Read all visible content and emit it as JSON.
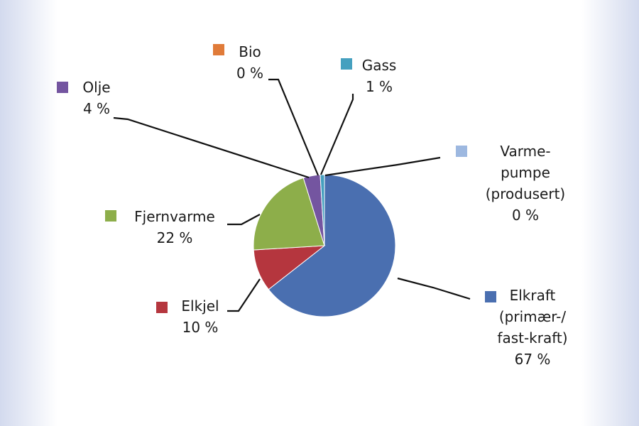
{
  "chart_data": {
    "type": "pie",
    "title": "",
    "slices": [
      {
        "name": "Elkraft (primær-/ fast-kraft)",
        "lines": [
          "Elkraft",
          "(primær-/",
          "fast-kraft)"
        ],
        "value": 67,
        "value_label": "67 %",
        "color": "#4a6fb0"
      },
      {
        "name": "Elkjel",
        "lines": [
          "Elkjel"
        ],
        "value": 10,
        "value_label": "10 %",
        "color": "#b5363e"
      },
      {
        "name": "Fjernvarme",
        "lines": [
          "Fjernvarme"
        ],
        "value": 22,
        "value_label": "22 %",
        "color": "#8dae4a"
      },
      {
        "name": "Olje",
        "lines": [
          "Olje"
        ],
        "value": 4,
        "value_label": "4 %",
        "color": "#7455a0"
      },
      {
        "name": "Bio",
        "lines": [
          "Bio"
        ],
        "value": 0,
        "value_label": "0 %",
        "color": "#e07b39"
      },
      {
        "name": "Gass",
        "lines": [
          "Gass"
        ],
        "value": 1,
        "value_label": "1 %",
        "color": "#45a0bf"
      },
      {
        "name": "Varmepumpe (produsert)",
        "lines": [
          "Varme-",
          "pumpe",
          "(produsert)"
        ],
        "value": 0,
        "value_label": "0 %",
        "color": "#9db8e0"
      }
    ]
  }
}
